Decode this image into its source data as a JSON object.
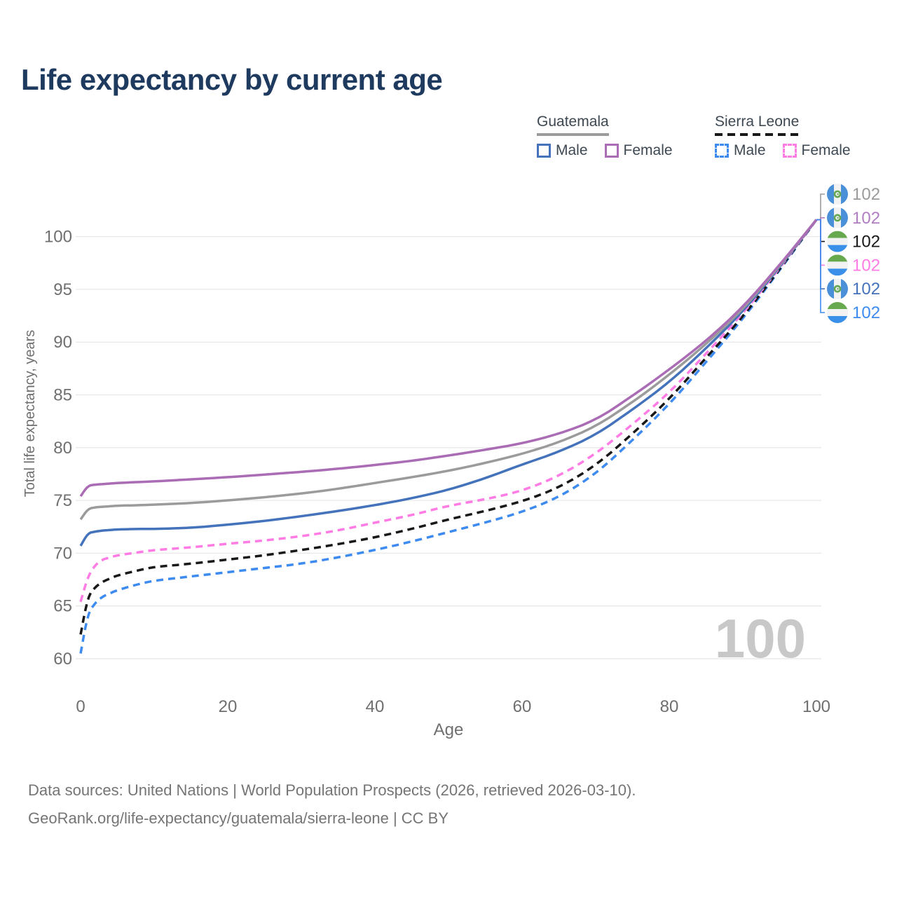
{
  "page": {
    "title": "Life expectancy by current age"
  },
  "legend": {
    "groups": [
      {
        "country": "Guatemala",
        "style": "solid",
        "line_color": "#9b9b9b",
        "items": [
          {
            "label": "Male",
            "color": "#4473bb",
            "dashed": false
          },
          {
            "label": "Female",
            "color": "#aa6cb4",
            "dashed": false
          }
        ]
      },
      {
        "country": "Sierra Leone",
        "style": "dashed",
        "line_color": "#181818",
        "items": [
          {
            "label": "Male",
            "color": "#3e8bf0",
            "dashed": true
          },
          {
            "label": "Female",
            "color": "#ff7ce5",
            "dashed": true
          }
        ]
      }
    ]
  },
  "chart_data": {
    "type": "line",
    "title": "Life expectancy by current age",
    "xlabel": "Age",
    "ylabel": "Total life expectancy, years",
    "xlim": [
      0,
      100
    ],
    "ylim": [
      60,
      102
    ],
    "xticks": [
      0,
      20,
      40,
      60,
      80,
      100
    ],
    "yticks": [
      60,
      65,
      70,
      75,
      80,
      85,
      90,
      95,
      100
    ],
    "grid": "horizontal",
    "legend_position": "top-right",
    "watermark": "100",
    "ages": [
      0,
      1,
      2,
      3,
      4,
      5,
      8,
      10,
      15,
      20,
      25,
      30,
      35,
      40,
      45,
      50,
      55,
      60,
      65,
      70,
      75,
      80,
      85,
      90,
      95,
      100
    ],
    "series": [
      {
        "name": "Guatemala Total",
        "country": "Guatemala",
        "group": "Total",
        "color": "#9b9b9b",
        "dashed": false,
        "values": [
          73.2,
          74.2,
          74.35,
          74.4,
          74.45,
          74.5,
          74.55,
          74.6,
          74.75,
          75.0,
          75.3,
          75.65,
          76.1,
          76.65,
          77.2,
          77.8,
          78.55,
          79.4,
          80.5,
          82.0,
          84.3,
          86.9,
          89.8,
          93.1,
          97.2,
          101.6
        ]
      },
      {
        "name": "Guatemala Female",
        "country": "Guatemala",
        "group": "Female",
        "color": "#aa6cb4",
        "dashed": false,
        "values": [
          75.4,
          76.4,
          76.5,
          76.55,
          76.6,
          76.65,
          76.75,
          76.8,
          77.0,
          77.2,
          77.45,
          77.7,
          78.0,
          78.35,
          78.75,
          79.25,
          79.8,
          80.4,
          81.3,
          82.6,
          84.9,
          87.4,
          90.1,
          93.3,
          97.3,
          101.6
        ]
      },
      {
        "name": "Guatemala Male",
        "country": "Guatemala",
        "group": "Male",
        "color": "#4473bb",
        "dashed": false,
        "values": [
          70.7,
          71.9,
          72.05,
          72.15,
          72.2,
          72.25,
          72.3,
          72.3,
          72.4,
          72.7,
          73.05,
          73.5,
          74.0,
          74.55,
          75.2,
          76.0,
          77.1,
          78.4,
          79.6,
          81.2,
          83.6,
          86.2,
          89.4,
          92.9,
          97.1,
          101.6
        ]
      },
      {
        "name": "Sierra Leone Total",
        "country": "Sierra Leone",
        "group": "Total",
        "color": "#181818",
        "dashed": true,
        "values": [
          62.3,
          65.9,
          66.8,
          67.3,
          67.6,
          67.9,
          68.4,
          68.7,
          69.0,
          69.4,
          69.8,
          70.3,
          70.85,
          71.5,
          72.3,
          73.2,
          74.0,
          74.9,
          76.2,
          78.3,
          81.3,
          84.6,
          88.5,
          92.4,
          96.9,
          101.6
        ]
      },
      {
        "name": "Sierra Leone Female",
        "country": "Sierra Leone",
        "group": "Female",
        "color": "#ff7ce5",
        "dashed": true,
        "values": [
          65.4,
          67.8,
          68.9,
          69.4,
          69.6,
          69.8,
          70.1,
          70.3,
          70.55,
          70.9,
          71.2,
          71.6,
          72.15,
          72.9,
          73.6,
          74.5,
          75.1,
          75.9,
          77.3,
          79.4,
          82.2,
          85.2,
          88.9,
          92.7,
          97.0,
          101.6
        ]
      },
      {
        "name": "Sierra Leone Male",
        "country": "Sierra Leone",
        "group": "Male",
        "color": "#3e8bf0",
        "dashed": true,
        "values": [
          60.5,
          64.3,
          65.3,
          65.9,
          66.2,
          66.5,
          67.1,
          67.4,
          67.8,
          68.2,
          68.6,
          69.0,
          69.6,
          70.3,
          71.1,
          72.0,
          72.9,
          73.9,
          75.3,
          77.5,
          80.7,
          84.1,
          88.1,
          92.2,
          96.8,
          101.6
        ]
      }
    ],
    "end_labels": [
      {
        "label": "102",
        "color": "#9b9b9b",
        "flag": "guatemala",
        "series": "Guatemala Total"
      },
      {
        "label": "102",
        "color": "#b27ec2",
        "flag": "guatemala",
        "series": "Guatemala Female"
      },
      {
        "label": "102",
        "color": "#181818",
        "flag": "sierra-leone",
        "series": "Sierra Leone Total"
      },
      {
        "label": "102",
        "color": "#ff7ce5",
        "flag": "sierra-leone",
        "series": "Sierra Leone Female"
      },
      {
        "label": "102",
        "color": "#4473bb",
        "flag": "guatemala",
        "series": "Guatemala Male"
      },
      {
        "label": "102",
        "color": "#3e8bf0",
        "flag": "sierra-leone",
        "series": "Sierra Leone Male"
      }
    ],
    "flag_colors": {
      "guatemala_blue": "#4a90d9",
      "flag_white": "#f2f2f2",
      "sierra_leone_green": "#66a94e",
      "sierra_leone_blue": "#3a8fe8",
      "emblem_green": "#67a856"
    },
    "colors": {
      "title": "#1e3a5f",
      "axis_text": "#6f6f6f",
      "gridline": "#e8e8e8",
      "watermark": "#c8c8c8"
    }
  },
  "footer": {
    "line1": "Data sources: United Nations | World Population Prospects (2026, retrieved 2026-03-10).",
    "line2": "GeoRank.org/life-expectancy/guatemala/sierra-leone | CC BY"
  }
}
